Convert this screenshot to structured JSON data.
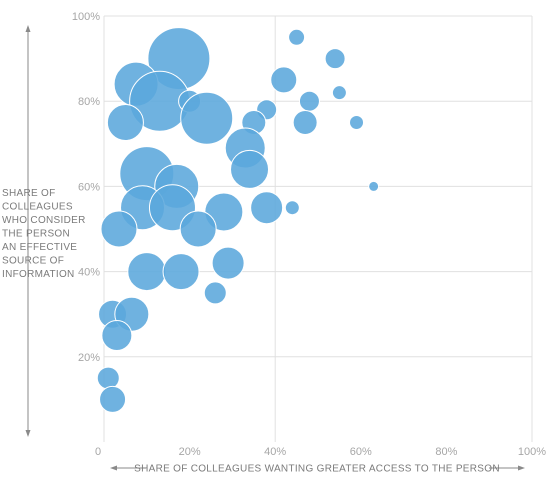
{
  "chart_data": {
    "type": "scatter",
    "subtype": "bubble",
    "xlabel": "SHARE OF COLLEAGUES WANTING GREATER ACCESS TO THE PERSON",
    "ylabel_lines": [
      "SHARE OF",
      "COLLEAGUES",
      "WHO CONSIDER",
      "THE PERSON",
      "AN EFFECTIVE",
      "SOURCE OF",
      "INFORMATION"
    ],
    "xlim": [
      0,
      100
    ],
    "ylim": [
      0,
      100
    ],
    "x_ticks": [
      "0",
      "20%",
      "40%",
      "60%",
      "80%",
      "100%"
    ],
    "y_ticks": [
      "20%",
      "40%",
      "60%",
      "80%",
      "100%"
    ],
    "grid": true,
    "color": "#5ba7dc",
    "points": [
      {
        "x": 17.5,
        "y": 90,
        "size": 31
      },
      {
        "x": 45,
        "y": 95,
        "size": 8
      },
      {
        "x": 54,
        "y": 90,
        "size": 10
      },
      {
        "x": 7.5,
        "y": 84,
        "size": 22
      },
      {
        "x": 13,
        "y": 80,
        "size": 30
      },
      {
        "x": 20,
        "y": 80,
        "size": 11
      },
      {
        "x": 42,
        "y": 85,
        "size": 13
      },
      {
        "x": 48,
        "y": 80,
        "size": 10
      },
      {
        "x": 55,
        "y": 82,
        "size": 7
      },
      {
        "x": 5,
        "y": 75,
        "size": 18
      },
      {
        "x": 24,
        "y": 76,
        "size": 26
      },
      {
        "x": 38,
        "y": 78,
        "size": 10
      },
      {
        "x": 35,
        "y": 75,
        "size": 12
      },
      {
        "x": 47,
        "y": 75,
        "size": 12
      },
      {
        "x": 59,
        "y": 75,
        "size": 7
      },
      {
        "x": 33,
        "y": 69,
        "size": 20
      },
      {
        "x": 34,
        "y": 64,
        "size": 19
      },
      {
        "x": 10,
        "y": 63,
        "size": 27
      },
      {
        "x": 17,
        "y": 60,
        "size": 22
      },
      {
        "x": 63,
        "y": 60,
        "size": 5
      },
      {
        "x": 9,
        "y": 55,
        "size": 22
      },
      {
        "x": 16,
        "y": 55,
        "size": 23
      },
      {
        "x": 28,
        "y": 54,
        "size": 19
      },
      {
        "x": 38,
        "y": 55,
        "size": 16
      },
      {
        "x": 44,
        "y": 55,
        "size": 7
      },
      {
        "x": 3.5,
        "y": 50,
        "size": 18
      },
      {
        "x": 22,
        "y": 50,
        "size": 18
      },
      {
        "x": 10,
        "y": 40,
        "size": 19
      },
      {
        "x": 18,
        "y": 40,
        "size": 18
      },
      {
        "x": 29,
        "y": 42,
        "size": 16
      },
      {
        "x": 26,
        "y": 35,
        "size": 11
      },
      {
        "x": 2,
        "y": 30,
        "size": 14
      },
      {
        "x": 6.5,
        "y": 30,
        "size": 17
      },
      {
        "x": 3,
        "y": 25,
        "size": 15
      },
      {
        "x": 1,
        "y": 15,
        "size": 11
      },
      {
        "x": 2,
        "y": 10,
        "size": 13
      }
    ]
  }
}
